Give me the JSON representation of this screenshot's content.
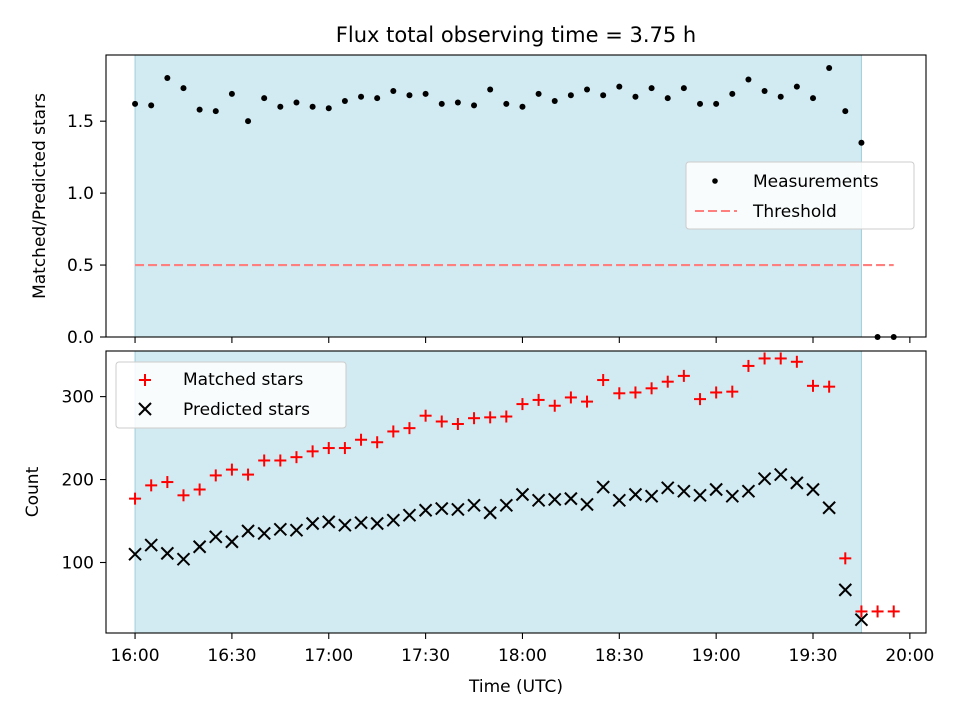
{
  "chart_data": [
    {
      "type": "scatter",
      "title": "Flux total observing time = 3.75 h",
      "xlabel": "",
      "ylabel": "Matched/Predicted stars",
      "ylim": [
        0,
        1.96
      ],
      "yticks": [
        "0.0",
        "0.5",
        "1.0",
        "1.5"
      ],
      "ytick_values": [
        0,
        0.5,
        1.0,
        1.5
      ],
      "grid": false,
      "legend_position": "center-right",
      "shaded_region": {
        "x_start": "16:00",
        "x_end": "19:45",
        "color": "#add8e6"
      },
      "series": [
        {
          "name": "Measurements",
          "marker": "dot",
          "color": "#000000",
          "x": [
            "16:00",
            "16:05",
            "16:10",
            "16:15",
            "16:20",
            "16:25",
            "16:30",
            "16:35",
            "16:40",
            "16:45",
            "16:50",
            "16:55",
            "17:00",
            "17:05",
            "17:10",
            "17:15",
            "17:20",
            "17:25",
            "17:30",
            "17:35",
            "17:40",
            "17:45",
            "17:50",
            "17:55",
            "18:00",
            "18:05",
            "18:10",
            "18:15",
            "18:20",
            "18:25",
            "18:30",
            "18:35",
            "18:40",
            "18:45",
            "18:50",
            "18:55",
            "19:00",
            "19:05",
            "19:10",
            "19:15",
            "19:20",
            "19:25",
            "19:30",
            "19:35",
            "19:40",
            "19:45",
            "19:50",
            "19:55"
          ],
          "values": [
            1.62,
            1.61,
            1.8,
            1.73,
            1.58,
            1.57,
            1.69,
            1.5,
            1.66,
            1.6,
            1.63,
            1.6,
            1.59,
            1.64,
            1.67,
            1.66,
            1.71,
            1.68,
            1.69,
            1.62,
            1.63,
            1.61,
            1.72,
            1.62,
            1.6,
            1.69,
            1.64,
            1.68,
            1.72,
            1.68,
            1.74,
            1.67,
            1.73,
            1.66,
            1.73,
            1.62,
            1.62,
            1.69,
            1.79,
            1.71,
            1.67,
            1.74,
            1.66,
            1.87,
            1.57,
            1.35,
            0.0,
            0.0
          ]
        },
        {
          "name": "Threshold",
          "style": "dashed",
          "color": "#ff7f7f",
          "x": [
            "16:00",
            "19:55"
          ],
          "values": [
            0.5,
            0.5
          ]
        }
      ]
    },
    {
      "type": "scatter",
      "title": "",
      "xlabel": "Time (UTC)",
      "ylabel": "Count",
      "ylim": [
        15,
        355
      ],
      "yticks": [
        "100",
        "200",
        "300"
      ],
      "ytick_values": [
        100,
        200,
        300
      ],
      "xticks": [
        "16:00",
        "16:30",
        "17:00",
        "17:30",
        "18:00",
        "18:30",
        "19:00",
        "19:30",
        "20:00"
      ],
      "xlim": [
        "15:51",
        "20:05"
      ],
      "grid": false,
      "legend_position": "top-left",
      "shaded_region": {
        "x_start": "16:00",
        "x_end": "19:45",
        "color": "#add8e6"
      },
      "series": [
        {
          "name": "Matched stars",
          "marker": "plus",
          "color": "#ff0000",
          "x": [
            "16:00",
            "16:05",
            "16:10",
            "16:15",
            "16:20",
            "16:25",
            "16:30",
            "16:35",
            "16:40",
            "16:45",
            "16:50",
            "16:55",
            "17:00",
            "17:05",
            "17:10",
            "17:15",
            "17:20",
            "17:25",
            "17:30",
            "17:35",
            "17:40",
            "17:45",
            "17:50",
            "17:55",
            "18:00",
            "18:05",
            "18:10",
            "18:15",
            "18:20",
            "18:25",
            "18:30",
            "18:35",
            "18:40",
            "18:45",
            "18:50",
            "18:55",
            "19:00",
            "19:05",
            "19:10",
            "19:15",
            "19:20",
            "19:25",
            "19:30",
            "19:35",
            "19:40",
            "19:45",
            "19:50",
            "19:55"
          ],
          "values": [
            177,
            193,
            197,
            181,
            188,
            205,
            212,
            206,
            223,
            223,
            227,
            234,
            238,
            238,
            248,
            245,
            258,
            262,
            277,
            270,
            267,
            274,
            275,
            276,
            291,
            296,
            289,
            299,
            294,
            320,
            304,
            305,
            310,
            318,
            325,
            297,
            305,
            306,
            337,
            346,
            346,
            342,
            313,
            312,
            105,
            41,
            41,
            41
          ]
        },
        {
          "name": "Predicted stars",
          "marker": "x",
          "color": "#000000",
          "x": [
            "16:00",
            "16:05",
            "16:10",
            "16:15",
            "16:20",
            "16:25",
            "16:30",
            "16:35",
            "16:40",
            "16:45",
            "16:50",
            "16:55",
            "17:00",
            "17:05",
            "17:10",
            "17:15",
            "17:20",
            "17:25",
            "17:30",
            "17:35",
            "17:40",
            "17:45",
            "17:50",
            "17:55",
            "18:00",
            "18:05",
            "18:10",
            "18:15",
            "18:20",
            "18:25",
            "18:30",
            "18:35",
            "18:40",
            "18:45",
            "18:50",
            "18:55",
            "19:00",
            "19:05",
            "19:10",
            "19:15",
            "19:20",
            "19:25",
            "19:30",
            "19:35",
            "19:40",
            "19:45"
          ],
          "values": [
            110,
            121,
            111,
            104,
            119,
            131,
            125,
            138,
            135,
            140,
            139,
            147,
            149,
            145,
            148,
            147,
            151,
            157,
            163,
            165,
            164,
            169,
            160,
            169,
            182,
            175,
            176,
            177,
            170,
            191,
            175,
            182,
            180,
            190,
            186,
            181,
            188,
            180,
            186,
            201,
            206,
            196,
            188,
            166,
            67,
            31
          ]
        }
      ]
    }
  ]
}
